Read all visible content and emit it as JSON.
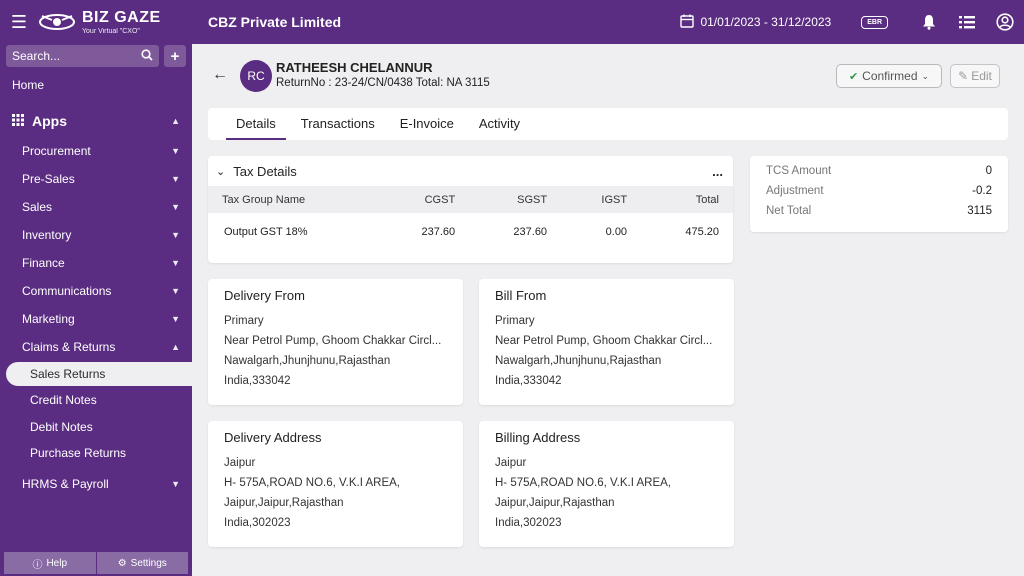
{
  "topbar": {
    "brand_name": "BIZ GAZE",
    "brand_tagline": "Your Virtual \"CXO\"",
    "company": "CBZ Private Limited",
    "date_range": "01/01/2023 - 31/12/2023",
    "ebr_label": "EBR"
  },
  "sidebar": {
    "search_placeholder": "Search...",
    "home": "Home",
    "apps": "Apps",
    "items": [
      {
        "label": "Procurement"
      },
      {
        "label": "Pre-Sales"
      },
      {
        "label": "Sales"
      },
      {
        "label": "Inventory"
      },
      {
        "label": "Finance"
      },
      {
        "label": "Communications"
      },
      {
        "label": "Marketing"
      },
      {
        "label": "Claims & Returns"
      }
    ],
    "sub_items": [
      {
        "label": "Sales Returns"
      },
      {
        "label": "Credit Notes"
      },
      {
        "label": "Debit Notes"
      },
      {
        "label": "Purchase Returns"
      }
    ],
    "last_item": "HRMS & Payroll",
    "help": "Help",
    "settings": "Settings"
  },
  "record": {
    "initials": "RC",
    "name": "RATHEESH CHELANNUR",
    "subtitle": "ReturnNo : 23-24/CN/0438  Total: NA 3115",
    "status": "Confirmed",
    "edit": "Edit"
  },
  "tabs": [
    {
      "label": "Details"
    },
    {
      "label": "Transactions"
    },
    {
      "label": "E-Invoice"
    },
    {
      "label": "Activity"
    }
  ],
  "tax": {
    "title": "Tax Details",
    "more": "...",
    "columns": [
      "Tax Group Name",
      "CGST",
      "SGST",
      "IGST",
      "Total"
    ],
    "rows": [
      [
        "Output GST 18%",
        "237.60",
        "237.60",
        "0.00",
        "475.20"
      ]
    ]
  },
  "totals": [
    {
      "label": "TCS Amount",
      "value": "0"
    },
    {
      "label": "Adjustment",
      "value": "-0.2"
    },
    {
      "label": "Net Total",
      "value": "3115"
    }
  ],
  "addresses": [
    {
      "title": "Delivery From",
      "lines": [
        "Primary",
        "Near Petrol Pump, Ghoom Chakkar Circl...",
        "Nawalgarh,Jhunjhunu,Rajasthan",
        "India,333042"
      ]
    },
    {
      "title": "Bill From",
      "lines": [
        "Primary",
        "Near Petrol Pump, Ghoom Chakkar Circl...",
        "Nawalgarh,Jhunjhunu,Rajasthan",
        "India,333042"
      ]
    },
    {
      "title": "Delivery Address",
      "lines": [
        "Jaipur",
        "H- 575A,ROAD NO.6, V.K.I AREA,",
        "Jaipur,Jaipur,Rajasthan",
        "India,302023"
      ]
    },
    {
      "title": "Billing Address",
      "lines": [
        "Jaipur",
        "H- 575A,ROAD NO.6, V.K.I AREA,",
        "Jaipur,Jaipur,Rajasthan",
        "India,302023"
      ]
    }
  ],
  "colors": {
    "brand": "#5b2d82",
    "confirmed": "#2e9a45"
  }
}
